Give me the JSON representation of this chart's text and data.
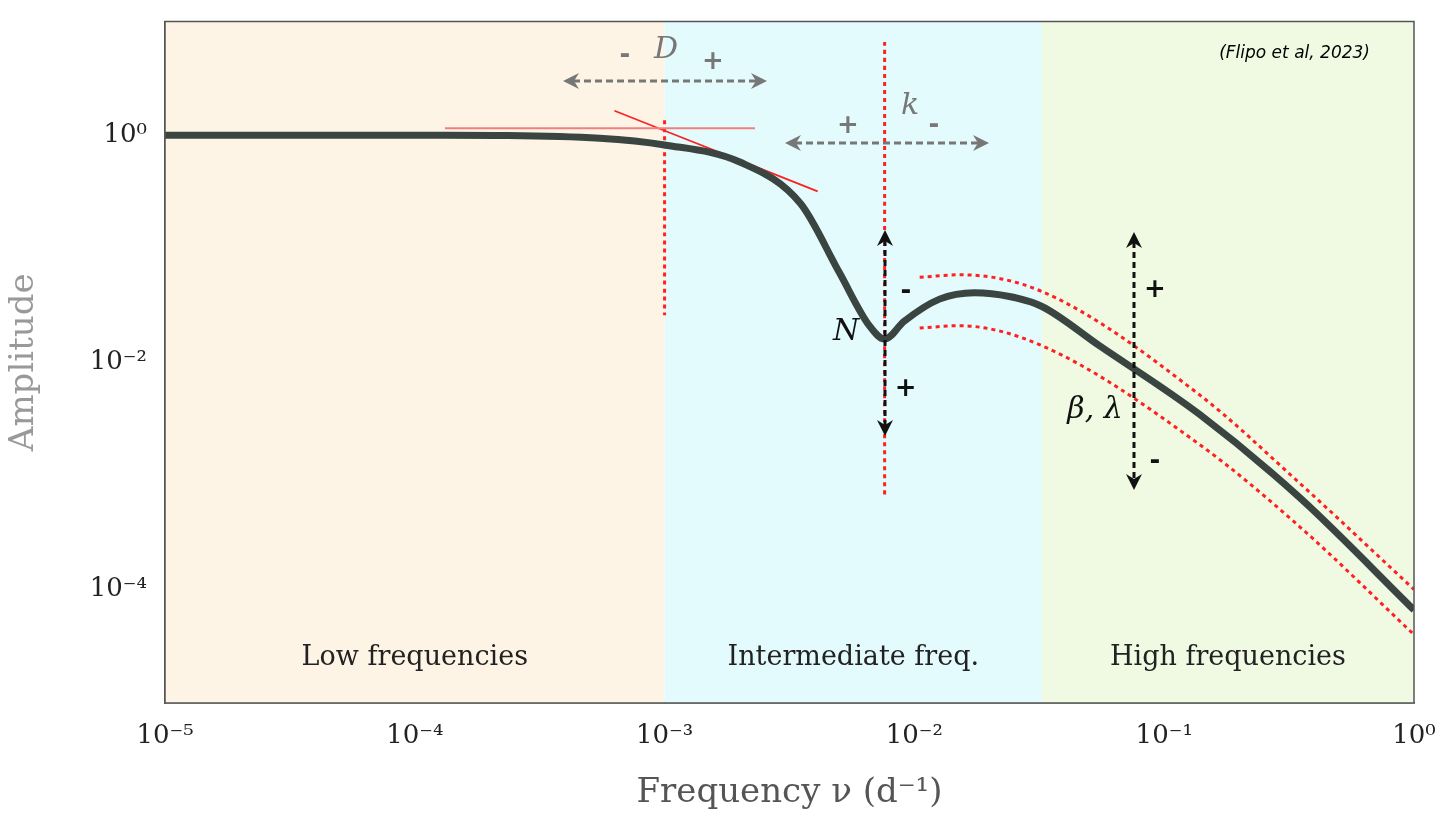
{
  "chart_data": {
    "type": "line",
    "xlabel": "Frequency ν (d⁻¹)",
    "ylabel": "Amplitude",
    "log": "xy",
    "grid": false,
    "legend": false,
    "marker": "none",
    "xlim": [
      1e-05,
      1
    ],
    "ylim": [
      1e-05,
      10
    ],
    "xticks": [
      {
        "value": 1e-05,
        "label": "10⁻⁵"
      },
      {
        "value": 0.0001,
        "label": "10⁻⁴"
      },
      {
        "value": 0.001,
        "label": "10⁻³"
      },
      {
        "value": 0.01,
        "label": "10⁻²"
      },
      {
        "value": 0.1,
        "label": "10⁻¹"
      },
      {
        "value": 1,
        "label": "10⁰"
      }
    ],
    "yticks": [
      {
        "value": 0.0001,
        "label": "10⁻⁴"
      },
      {
        "value": 0.01,
        "label": "10⁻²"
      },
      {
        "value": 1,
        "label": "10⁰"
      }
    ],
    "bands": [
      {
        "axis": "x",
        "from": 1e-05,
        "to": 0.001,
        "label": "Low frequencies",
        "color": "#fdf4e6"
      },
      {
        "axis": "x",
        "from": 0.001,
        "to": 0.0324,
        "label": "Intermediate freq.",
        "color": "#e3fbfd"
      },
      {
        "axis": "x",
        "from": 0.0324,
        "to": 1,
        "label": "High frequencies",
        "color": "#f0fae3"
      }
    ],
    "series": [
      {
        "color": "#3a4542",
        "x": [
          1e-05,
          0.000132,
          0.00055,
          0.001,
          0.002,
          0.0035,
          0.005,
          0.0066,
          0.0076,
          0.0091,
          0.0126,
          0.0174,
          0.024,
          0.0324,
          0.055,
          0.138,
          0.347,
          1
        ],
        "values": [
          1,
          1,
          0.94,
          0.82,
          0.58,
          0.25,
          0.062,
          0.021,
          0.016,
          0.023,
          0.036,
          0.041,
          0.038,
          0.031,
          0.014,
          0.0035,
          0.00065,
          6.6e-05
        ]
      },
      {
        "color": "#ff2020",
        "line_style": "dotted",
        "x": [
          0.0105,
          0.0151,
          0.0324,
          0.138,
          0.347,
          1
        ],
        "values": [
          0.056,
          0.059,
          0.042,
          0.0052,
          0.00087,
          0.0001
        ]
      },
      {
        "color": "#ff2020",
        "line_style": "dotted",
        "x": [
          0.0105,
          0.0151,
          0.0324,
          0.138,
          0.347,
          1
        ],
        "values": [
          0.02,
          0.021,
          0.014,
          0.0019,
          0.00036,
          4e-05
        ]
      },
      {
        "color": "#f08080",
        "x": [
          0.000132,
          0.0023
        ],
        "values": [
          1.15,
          1.15
        ]
      },
      {
        "color": "#ff2020",
        "x": [
          0.00063,
          0.0041
        ],
        "values": [
          1.64,
          0.32
        ]
      },
      {
        "color": "#ff2020",
        "line_style": "dotted",
        "x": [
          0.001,
          0.001
        ],
        "values": [
          1.35,
          0.026
        ]
      },
      {
        "color": "#ff2020",
        "line_style": "dotted",
        "x": [
          0.0076,
          0.0076
        ],
        "values": [
          6.6,
          0.00065
        ]
      }
    ],
    "annotations": [
      "(Flipo et al, 2023)",
      "D",
      "-",
      "+",
      "k",
      "+",
      "-",
      "N",
      "-",
      {
        "text": "+",
        "x": 0.0076,
        "y": 0.016
      },
      "β, λ",
      "+",
      "-"
    ]
  }
}
